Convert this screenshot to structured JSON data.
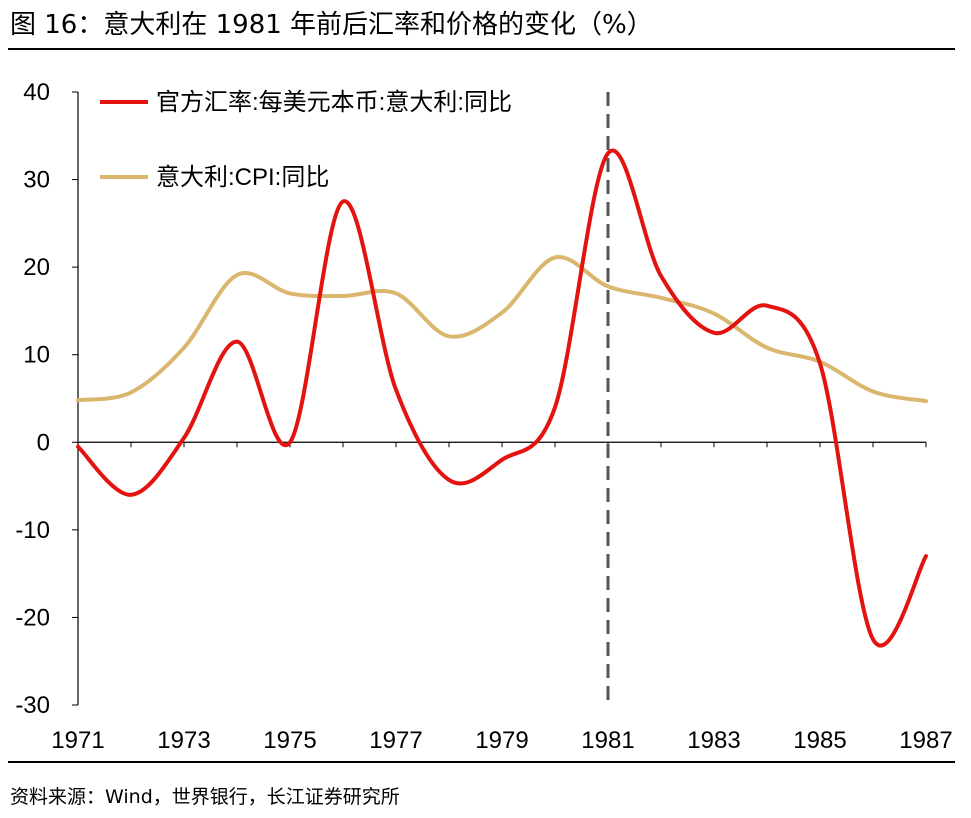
{
  "title": "图 16：意大利在 1981 年前后汇率和价格的变化（%）",
  "source": "资料来源：Wind，世界银行，长江证券研究所",
  "chart_data": {
    "type": "line",
    "title": "图 16：意大利在 1981 年前后汇率和价格的变化（%）",
    "xlabel": "",
    "ylabel": "",
    "xlim": [
      1971,
      1987
    ],
    "ylim": [
      -30,
      40
    ],
    "x_ticks": [
      1971,
      1973,
      1975,
      1977,
      1979,
      1981,
      1983,
      1985,
      1987
    ],
    "y_ticks": [
      40,
      30,
      20,
      10,
      0,
      -10,
      -20,
      -30
    ],
    "grid": false,
    "legend_position": "top-left",
    "annotations": [
      {
        "type": "vertical-dashed-line",
        "x": 1981
      }
    ],
    "series": [
      {
        "name": "官方汇率:每美元本币:意大利:同比",
        "color": "#e3140f",
        "x": [
          1971,
          1972,
          1973,
          1974,
          1975,
          1976,
          1977,
          1978,
          1979,
          1980,
          1981,
          1982,
          1983,
          1984,
          1985,
          1986,
          1987
        ],
        "y": [
          -0.5,
          -6,
          0.5,
          11.5,
          0,
          27.5,
          6,
          -4.3,
          -2,
          4,
          33,
          19,
          12.5,
          15.6,
          9,
          -22.5,
          -13
        ]
      },
      {
        "name": "意大利:CPI:同比",
        "color": "#dbb66e",
        "x": [
          1971,
          1972,
          1973,
          1974,
          1975,
          1976,
          1977,
          1978,
          1979,
          1980,
          1981,
          1982,
          1983,
          1984,
          1985,
          1986,
          1987
        ],
        "y": [
          4.8,
          5.7,
          10.8,
          19.1,
          17,
          16.7,
          17,
          12.1,
          14.8,
          21.1,
          17.8,
          16.5,
          14.7,
          10.8,
          9.2,
          5.8,
          4.7
        ]
      }
    ]
  }
}
